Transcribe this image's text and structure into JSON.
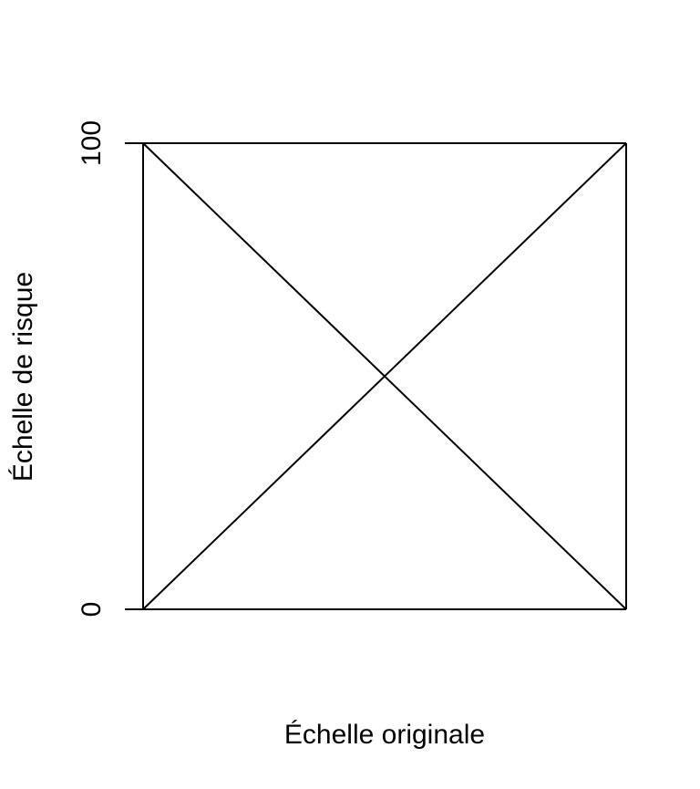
{
  "chart_data": {
    "type": "line",
    "xlabel": "Échelle originale",
    "ylabel": "Échelle de risque",
    "xlim": [
      0,
      1
    ],
    "ylim": [
      0,
      100
    ],
    "y_ticks": [
      {
        "value": 0,
        "label": "0"
      },
      {
        "value": 100,
        "label": "100"
      }
    ],
    "x_ticks": [],
    "grid": false,
    "box": true,
    "series": [
      {
        "x": [
          0,
          1
        ],
        "y": [
          0,
          100
        ]
      },
      {
        "x": [
          0,
          1
        ],
        "y": [
          100,
          0
        ]
      },
      {
        "x": [
          0,
          0
        ],
        "y": [
          0,
          100
        ]
      },
      {
        "x": [
          1,
          1
        ],
        "y": [
          0,
          100
        ]
      },
      {
        "x": [
          0,
          1
        ],
        "y": [
          0,
          0
        ]
      },
      {
        "x": [
          0,
          1
        ],
        "y": [
          100,
          100
        ]
      }
    ]
  }
}
